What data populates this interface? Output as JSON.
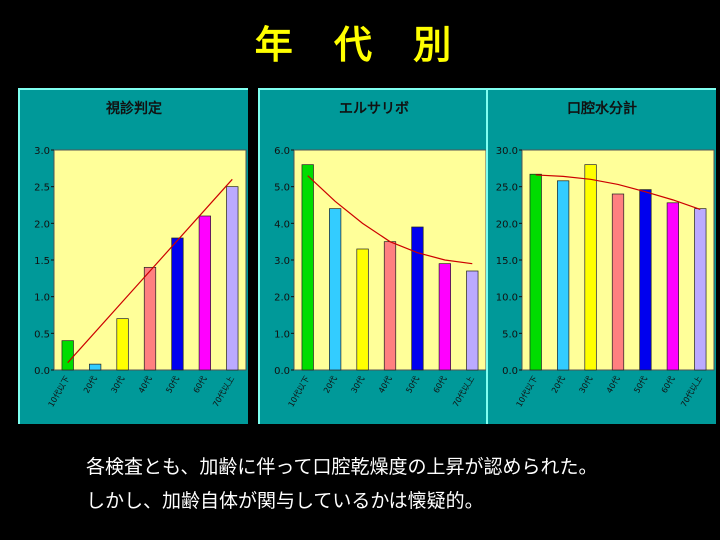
{
  "title": "年 代 別",
  "caption_lines": [
    "各検査とも、加齢に伴って口腔乾燥度の上昇が認められた。",
    "しかし、加齢自体が関与しているかは懐疑的。"
  ],
  "colors": {
    "background": "#000000",
    "title": "#ffff00",
    "panel": "#009999",
    "plot_area": "#ffff99",
    "trend": "#cc0000",
    "bars": [
      "#00dd00",
      "#33ccff",
      "#ffff00",
      "#ff8080",
      "#0000ee",
      "#ff00ff",
      "#bbaaff"
    ]
  },
  "chart_data": [
    {
      "type": "bar",
      "title": "視診判定",
      "categories": [
        "10代以下",
        "20代",
        "30代",
        "40代",
        "50代",
        "60代",
        "70代以上"
      ],
      "values": [
        0.4,
        0.08,
        0.7,
        1.4,
        1.8,
        2.1,
        2.5
      ],
      "ylim": [
        0,
        3.0
      ],
      "yticks": [
        "0.0",
        "0.5",
        "1.0",
        "1.5",
        "2.0",
        "2.5",
        "3.0"
      ],
      "trendline": {
        "type": "linear",
        "start": 0.1,
        "end": 2.6
      },
      "grid": false,
      "legend": "none"
    },
    {
      "type": "bar",
      "title": "エルサリボ",
      "categories": [
        "10代以下",
        "20代",
        "30代",
        "40代",
        "50代",
        "60代",
        "70代以上"
      ],
      "values": [
        5.6,
        4.4,
        3.3,
        3.5,
        3.9,
        2.9,
        2.7
      ],
      "ylim": [
        0,
        6.0
      ],
      "yticks": [
        "0.0",
        "1.0",
        "2.0",
        "3.0",
        "4.0",
        "5.0",
        "6.0"
      ],
      "trendline": {
        "type": "polynomial",
        "points": [
          5.3,
          4.6,
          4.0,
          3.5,
          3.2,
          3.0,
          2.9
        ]
      },
      "grid": false,
      "legend": "none"
    },
    {
      "type": "bar",
      "title": "口腔水分計",
      "categories": [
        "10代以下",
        "20代",
        "30代",
        "40代",
        "50代",
        "60代",
        "70代以上"
      ],
      "values": [
        26.7,
        25.8,
        28.0,
        24.0,
        24.6,
        22.8,
        22.0
      ],
      "ylim": [
        0,
        30.0
      ],
      "yticks": [
        "0.0",
        "5.0",
        "10.0",
        "15.0",
        "20.0",
        "25.0",
        "30.0"
      ],
      "trendline": {
        "type": "polynomial",
        "points": [
          26.6,
          26.4,
          26.0,
          25.3,
          24.3,
          23.2,
          21.9
        ]
      },
      "grid": false,
      "legend": "none"
    }
  ]
}
